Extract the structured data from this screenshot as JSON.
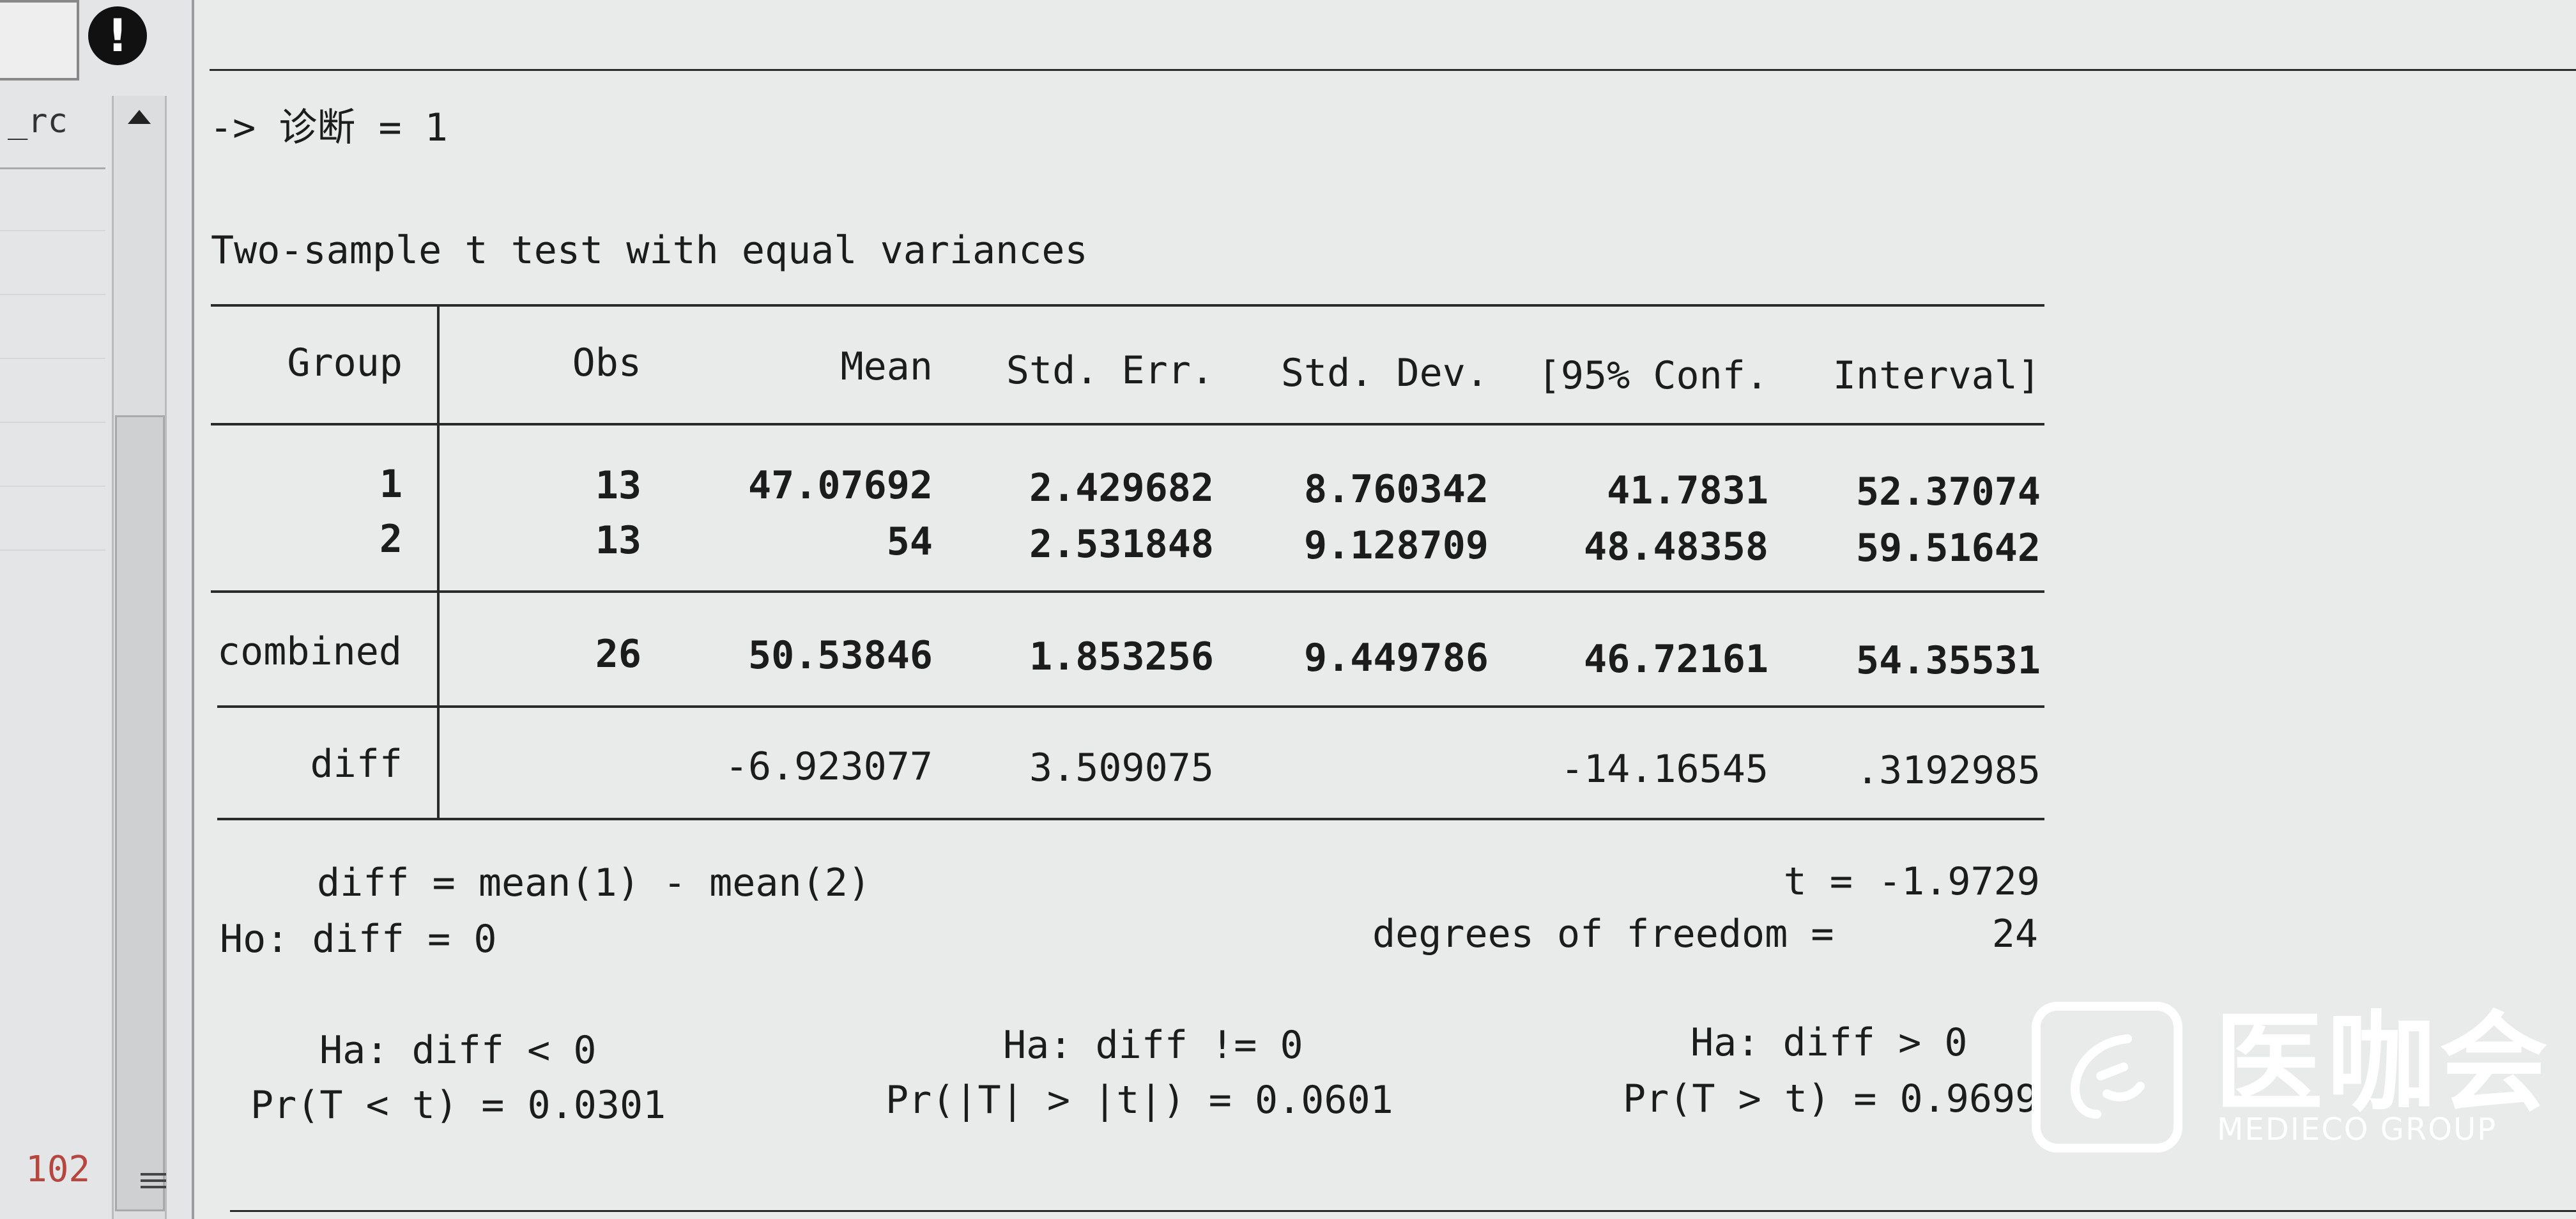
{
  "left_pane": {
    "variable_label": "_rc",
    "line_number": "102"
  },
  "results": {
    "by_header": "-> 诊断 = 1",
    "test_title": "Two-sample t test with equal variances",
    "columns": [
      "Group",
      "Obs",
      "Mean",
      "Std. Err.",
      "Std. Dev.",
      "[95% Conf.",
      "Interval]"
    ],
    "rows": [
      {
        "group": "1",
        "obs": "13",
        "mean": "47.07692",
        "se": "2.429682",
        "sd": "8.760342",
        "ci_low": "41.7831",
        "ci_high": "52.37074"
      },
      {
        "group": "2",
        "obs": "13",
        "mean": "54",
        "se": "2.531848",
        "sd": "9.128709",
        "ci_low": "48.48358",
        "ci_high": "59.51642"
      }
    ],
    "combined": {
      "group": "combined",
      "obs": "26",
      "mean": "50.53846",
      "se": "1.853256",
      "sd": "9.449786",
      "ci_low": "46.72161",
      "ci_high": "54.35531"
    },
    "diff": {
      "group": "diff",
      "mean": "-6.923077",
      "se": "3.509075",
      "ci_low": "-14.16545",
      "ci_high": ".3192985"
    },
    "diff_def": "diff = mean(1) - mean(2)",
    "t_label": "t =",
    "t_value": "-1.9729",
    "ho": "Ho: diff = 0",
    "df_label": "degrees of freedom =",
    "df_value": "24",
    "ha_left": "Ha: diff < 0",
    "ha_two": "Ha: diff != 0",
    "ha_right": "Ha: diff > 0",
    "p_left": "Pr(T < t) = 0.0301",
    "p_two": "Pr(|T| > |t|) = 0.0601",
    "p_right": "Pr(T > t) = 0.9699"
  },
  "watermark": {
    "name_cn": "医咖会",
    "name_en": "MEDIECO GROUP"
  }
}
